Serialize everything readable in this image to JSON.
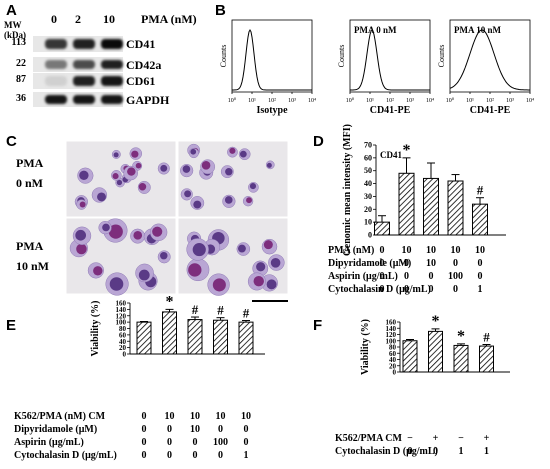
{
  "panels": {
    "A": {
      "label": "A",
      "mw_header": "MW (kDa)",
      "pma_header": "PMA (nM)",
      "lanes": [
        "0",
        "2",
        "10"
      ],
      "rows": [
        {
          "mw": "113",
          "protein": "CD41"
        },
        {
          "mw": "22",
          "protein": "CD42a"
        },
        {
          "mw": "87",
          "protein": "CD61"
        },
        {
          "mw": "36",
          "protein": "GAPDH"
        }
      ],
      "band_intensity": [
        [
          0.8,
          0.9,
          1.0
        ],
        [
          0.5,
          0.7,
          0.9
        ],
        [
          0.1,
          0.9,
          0.95
        ],
        [
          0.95,
          0.95,
          0.95
        ]
      ]
    },
    "B": {
      "label": "B",
      "histograms": [
        {
          "title": "",
          "xlabel": "Isotype",
          "ylabel": "Counts",
          "peak_log": 0.9,
          "width": 0.2
        },
        {
          "title": "PMA 0 nM",
          "xlabel": "CD41-PE",
          "ylabel": "Counts",
          "peak_log": 1.1,
          "width": 0.25
        },
        {
          "title": "PMA 10 nM",
          "xlabel": "CD41-PE",
          "ylabel": "Counts",
          "peak_log": 1.6,
          "width": 0.6
        }
      ],
      "xticks": [
        "10⁰",
        "10¹",
        "10²",
        "10³",
        "10⁴"
      ]
    },
    "C": {
      "label": "C",
      "row_labels": [
        {
          "line1": "PMA",
          "line2": "0 nM"
        },
        {
          "line1": "PMA",
          "line2": "10 nM"
        }
      ]
    }
  },
  "chart_data": [
    {
      "panel": "D",
      "type": "bar",
      "inner_label": "CD41",
      "ylabel": "Genomic mean intensity (MFI)",
      "ylim": [
        0,
        70
      ],
      "yticks": [
        0,
        10,
        20,
        30,
        40,
        50,
        60,
        70
      ],
      "values": [
        10,
        48,
        44,
        42,
        24
      ],
      "errors": [
        5,
        12,
        12,
        5,
        5
      ],
      "annotations": [
        "",
        "*",
        "",
        "",
        "#"
      ],
      "condition_table": [
        {
          "label": "PMA (nM)",
          "values": [
            "0",
            "10",
            "10",
            "10",
            "10"
          ]
        },
        {
          "label": "Dipyridamole (μM)",
          "values": [
            "0",
            "0",
            "10",
            "0",
            "0"
          ]
        },
        {
          "label": "Aspirin (μg/mL)",
          "values": [
            "0",
            "0",
            "0",
            "100",
            "0"
          ]
        },
        {
          "label": "Cytochalasin D (μg/mL)",
          "values": [
            "0",
            "0",
            "0",
            "0",
            "1"
          ]
        }
      ]
    },
    {
      "panel": "E",
      "type": "bar",
      "ylabel": "Viability (%)",
      "ylim": [
        0,
        160
      ],
      "yticks": [
        0,
        20,
        40,
        60,
        80,
        100,
        120,
        140,
        160
      ],
      "values": [
        100,
        132,
        108,
        106,
        100
      ],
      "errors": [
        2,
        8,
        8,
        8,
        5
      ],
      "annotations": [
        "",
        "*",
        "#",
        "#",
        "#"
      ],
      "condition_table": [
        {
          "label": "K562/PMA (nM) CM",
          "values": [
            "0",
            "10",
            "10",
            "10",
            "10"
          ]
        },
        {
          "label": "Dipyridamole (μM)",
          "values": [
            "0",
            "0",
            "10",
            "0",
            "0"
          ]
        },
        {
          "label": "Aspirin (μg/mL)",
          "values": [
            "0",
            "0",
            "0",
            "100",
            "0"
          ]
        },
        {
          "label": "Cytochalasin D (μg/mL)",
          "values": [
            "0",
            "0",
            "0",
            "0",
            "1"
          ]
        }
      ]
    },
    {
      "panel": "F",
      "type": "bar",
      "ylabel": "Viability (%)",
      "ylim": [
        0,
        160
      ],
      "yticks": [
        0,
        20,
        40,
        60,
        80,
        100,
        120,
        140,
        160
      ],
      "values": [
        100,
        130,
        85,
        83
      ],
      "errors": [
        4,
        8,
        5,
        5
      ],
      "annotations": [
        "",
        "*",
        "*",
        "#"
      ],
      "condition_table": [
        {
          "label": "K562/PMA CM",
          "values": [
            "−",
            "+",
            "−",
            "+"
          ]
        },
        {
          "label": "Cytochalasin D (μg/mL)",
          "values": [
            "0",
            "0",
            "1",
            "1"
          ]
        }
      ]
    }
  ]
}
